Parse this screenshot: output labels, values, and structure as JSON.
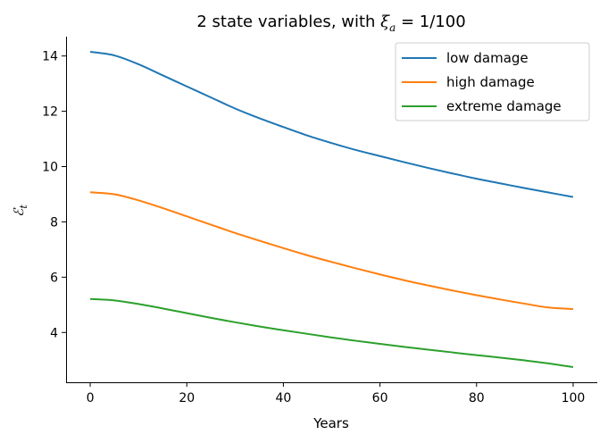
{
  "chart_data": {
    "type": "line",
    "title_prefix": "2 state variables, with ",
    "title_symbol": "ξ",
    "title_subscript": "a",
    "title_suffix": " = 1/100",
    "xlabel": "Years",
    "ylabel_symbol": "ℰ",
    "ylabel_subscript": "t",
    "xlim": [
      -5,
      105
    ],
    "ylim": [
      2.2,
      14.7
    ],
    "xticks": [
      0,
      20,
      40,
      60,
      80,
      100
    ],
    "yticks": [
      4,
      6,
      8,
      10,
      12,
      14
    ],
    "grid": false,
    "legend_position": "top-right",
    "x": [
      0,
      5,
      10,
      15,
      20,
      25,
      30,
      35,
      40,
      45,
      50,
      55,
      60,
      65,
      70,
      75,
      80,
      85,
      90,
      95,
      100
    ],
    "series": [
      {
        "name": "low damage",
        "color": "#1f77b4",
        "values": [
          14.15,
          14.02,
          13.7,
          13.3,
          12.9,
          12.5,
          12.1,
          11.75,
          11.43,
          11.12,
          10.85,
          10.6,
          10.38,
          10.16,
          9.95,
          9.75,
          9.56,
          9.39,
          9.22,
          9.06,
          8.9
        ]
      },
      {
        "name": "high damage",
        "color": "#ff7f0e",
        "values": [
          9.07,
          9.0,
          8.78,
          8.5,
          8.2,
          7.9,
          7.6,
          7.32,
          7.05,
          6.79,
          6.55,
          6.32,
          6.1,
          5.89,
          5.7,
          5.52,
          5.35,
          5.19,
          5.04,
          4.9,
          4.85
        ]
      },
      {
        "name": "extreme damage",
        "color": "#2ca02c",
        "values": [
          5.21,
          5.16,
          5.03,
          4.87,
          4.7,
          4.53,
          4.37,
          4.22,
          4.08,
          3.95,
          3.82,
          3.7,
          3.59,
          3.48,
          3.38,
          3.28,
          3.18,
          3.09,
          2.99,
          2.88,
          2.75
        ]
      }
    ]
  }
}
